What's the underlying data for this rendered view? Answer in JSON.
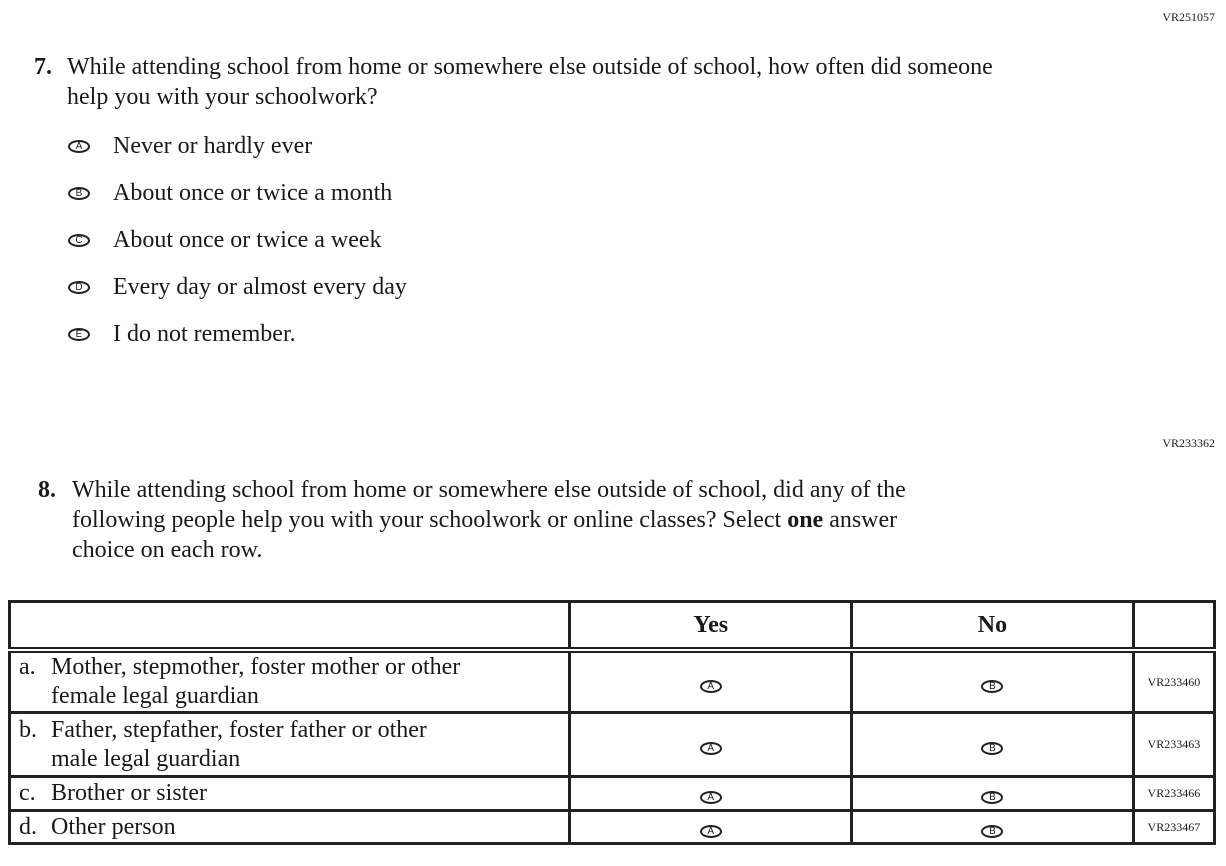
{
  "q7": {
    "code": "VR251057",
    "number": "7.",
    "text_line1": "While attending school from home or somewhere else outside of school, how often did someone",
    "text_line2": "help you with your schoolwork?",
    "options": [
      {
        "letter": "A",
        "label": "Never or hardly ever"
      },
      {
        "letter": "B",
        "label": "About once or twice a month"
      },
      {
        "letter": "C",
        "label": "About once or twice a week"
      },
      {
        "letter": "D",
        "label": "Every day or almost every day"
      },
      {
        "letter": "E",
        "label": "I do not remember."
      }
    ]
  },
  "q8": {
    "code": "VR233362",
    "number": "8.",
    "text_line1": "While attending school from home or somewhere else outside of school, did any of the",
    "text_line2_pre": "following people help you with your schoolwork or online classes? Select ",
    "text_line2_bold": "one",
    "text_line2_post": " answer",
    "text_line3": "choice on each row.",
    "columns": [
      "Yes",
      "No"
    ],
    "rows": [
      {
        "letter": "a.",
        "line1": "Mother, stepmother, foster mother or other",
        "line2": "female legal guardian",
        "yes": "A",
        "no": "B",
        "code": "VR233460"
      },
      {
        "letter": "b.",
        "line1": "Father, stepfather, foster father or other",
        "line2": "male legal guardian",
        "yes": "A",
        "no": "B",
        "code": "VR233463"
      },
      {
        "letter": "c.",
        "line1": "Brother or sister",
        "yes": "A",
        "no": "B",
        "code": "VR233466"
      },
      {
        "letter": "d.",
        "line1": "Other person",
        "yes": "A",
        "no": "B",
        "code": "VR233467"
      }
    ]
  }
}
